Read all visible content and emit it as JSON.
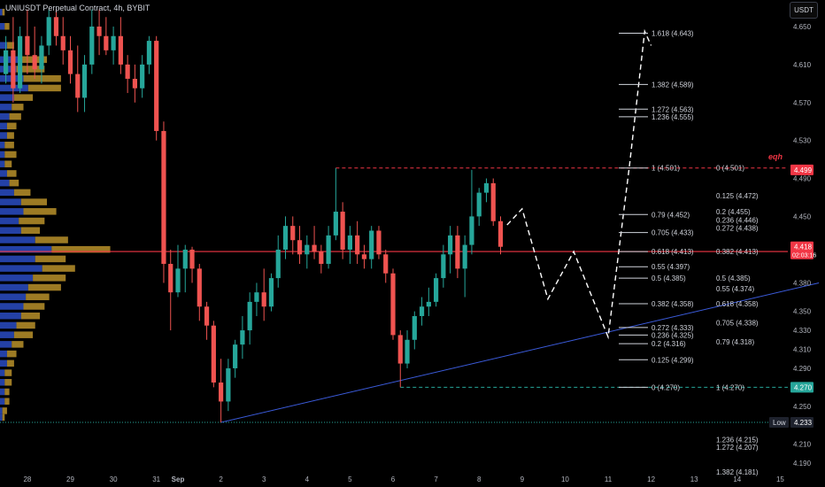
{
  "header": {
    "symbol_title": "UNIUSDT Perpetual Contract, 4h, BYBIT",
    "currency_button": "USDT"
  },
  "colors": {
    "background": "#000000",
    "bull": "#26a69a",
    "bear": "#ef5350",
    "profile_blue": "#2848b8",
    "profile_gold": "#b8902a",
    "level_line": "#f23645",
    "trend_line": "#3b5bdb",
    "low_line": "#26a69a",
    "axis_text": "#b2b5be"
  },
  "chart_data": {
    "type": "candlestick",
    "title": "UNIUSDT Perpetual Contract, 4h, BYBIT",
    "ylim": [
      4.178,
      4.678
    ],
    "y_ticks": [
      "4.650",
      "4.610",
      "4.570",
      "4.530",
      "4.490",
      "4.450",
      "4.380",
      "4.350",
      "4.330",
      "4.310",
      "4.290",
      "4.250",
      "4.210",
      "4.190"
    ],
    "x_ticks": [
      "28",
      "29",
      "30",
      "31",
      "Sep",
      "2",
      "3",
      "4",
      "5",
      "6",
      "7",
      "8",
      "9",
      "10",
      "11",
      "12",
      "13",
      "14",
      "15"
    ],
    "x_ticks_bold": [
      "Sep"
    ],
    "price_labels": [
      {
        "text": "4.499",
        "value": 4.499,
        "color": "#f23645"
      },
      {
        "text": "4.418",
        "value": 4.418,
        "color": "#f23645",
        "subtext": "02:03:16"
      },
      {
        "text": "4.270",
        "value": 4.27,
        "color": "#26a69a"
      },
      {
        "text": "4.233",
        "value": 4.233,
        "color": "#1e222d",
        "tag": "Low"
      }
    ],
    "candles_date_axis_note": "x measured in days, 0 = Sep 1",
    "candles": [
      {
        "t": -4.0,
        "o": 4.6,
        "h": 4.64,
        "l": 4.59,
        "c": 4.625
      },
      {
        "t": -3.83,
        "o": 4.625,
        "h": 4.66,
        "l": 4.57,
        "c": 4.585
      },
      {
        "t": -3.67,
        "o": 4.585,
        "h": 4.65,
        "l": 4.58,
        "c": 4.64
      },
      {
        "t": -3.5,
        "o": 4.64,
        "h": 4.668,
        "l": 4.6,
        "c": 4.62
      },
      {
        "t": -3.33,
        "o": 4.62,
        "h": 4.65,
        "l": 4.595,
        "c": 4.605
      },
      {
        "t": -3.17,
        "o": 4.605,
        "h": 4.64,
        "l": 4.59,
        "c": 4.63
      },
      {
        "t": -3.0,
        "o": 4.63,
        "h": 4.668,
        "l": 4.62,
        "c": 4.66
      },
      {
        "t": -2.83,
        "o": 4.66,
        "h": 4.668,
        "l": 4.63,
        "c": 4.64
      },
      {
        "t": -2.67,
        "o": 4.64,
        "h": 4.66,
        "l": 4.61,
        "c": 4.625
      },
      {
        "t": -2.5,
        "o": 4.625,
        "h": 4.64,
        "l": 4.59,
        "c": 4.6
      },
      {
        "t": -2.33,
        "o": 4.6,
        "h": 4.63,
        "l": 4.56,
        "c": 4.575
      },
      {
        "t": -2.17,
        "o": 4.575,
        "h": 4.62,
        "l": 4.56,
        "c": 4.61
      },
      {
        "t": -2.0,
        "o": 4.61,
        "h": 4.668,
        "l": 4.6,
        "c": 4.65
      },
      {
        "t": -1.83,
        "o": 4.65,
        "h": 4.668,
        "l": 4.62,
        "c": 4.64
      },
      {
        "t": -1.67,
        "o": 4.64,
        "h": 4.66,
        "l": 4.62,
        "c": 4.625
      },
      {
        "t": -1.5,
        "o": 4.625,
        "h": 4.65,
        "l": 4.61,
        "c": 4.64
      },
      {
        "t": -1.33,
        "o": 4.64,
        "h": 4.66,
        "l": 4.6,
        "c": 4.61
      },
      {
        "t": -1.17,
        "o": 4.61,
        "h": 4.62,
        "l": 4.58,
        "c": 4.595
      },
      {
        "t": -1.0,
        "o": 4.595,
        "h": 4.61,
        "l": 4.57,
        "c": 4.585
      },
      {
        "t": -0.83,
        "o": 4.585,
        "h": 4.62,
        "l": 4.575,
        "c": 4.61
      },
      {
        "t": -0.67,
        "o": 4.61,
        "h": 4.64,
        "l": 4.6,
        "c": 4.635
      },
      {
        "t": -0.5,
        "o": 4.635,
        "h": 4.64,
        "l": 4.53,
        "c": 4.54
      },
      {
        "t": -0.33,
        "o": 4.54,
        "h": 4.55,
        "l": 4.38,
        "c": 4.4
      },
      {
        "t": -0.17,
        "o": 4.4,
        "h": 4.415,
        "l": 4.33,
        "c": 4.37
      },
      {
        "t": 0.0,
        "o": 4.37,
        "h": 4.42,
        "l": 4.365,
        "c": 4.395
      },
      {
        "t": 0.17,
        "o": 4.395,
        "h": 4.42,
        "l": 4.37,
        "c": 4.415
      },
      {
        "t": 0.33,
        "o": 4.415,
        "h": 4.418,
        "l": 4.38,
        "c": 4.395
      },
      {
        "t": 0.5,
        "o": 4.395,
        "h": 4.4,
        "l": 4.34,
        "c": 4.355
      },
      {
        "t": 0.67,
        "o": 4.355,
        "h": 4.36,
        "l": 4.32,
        "c": 4.335
      },
      {
        "t": 0.83,
        "o": 4.335,
        "h": 4.34,
        "l": 4.27,
        "c": 4.275
      },
      {
        "t": 1.0,
        "o": 4.275,
        "h": 4.3,
        "l": 4.233,
        "c": 4.255
      },
      {
        "t": 1.17,
        "o": 4.255,
        "h": 4.3,
        "l": 4.245,
        "c": 4.29
      },
      {
        "t": 1.33,
        "o": 4.29,
        "h": 4.32,
        "l": 4.28,
        "c": 4.315
      },
      {
        "t": 1.5,
        "o": 4.315,
        "h": 4.345,
        "l": 4.3,
        "c": 4.33
      },
      {
        "t": 1.67,
        "o": 4.33,
        "h": 4.37,
        "l": 4.315,
        "c": 4.36
      },
      {
        "t": 1.83,
        "o": 4.36,
        "h": 4.38,
        "l": 4.345,
        "c": 4.37
      },
      {
        "t": 2.0,
        "o": 4.37,
        "h": 4.395,
        "l": 4.34,
        "c": 4.355
      },
      {
        "t": 2.17,
        "o": 4.355,
        "h": 4.39,
        "l": 4.35,
        "c": 4.385
      },
      {
        "t": 2.33,
        "o": 4.385,
        "h": 4.43,
        "l": 4.375,
        "c": 4.415
      },
      {
        "t": 2.5,
        "o": 4.415,
        "h": 4.45,
        "l": 4.405,
        "c": 4.44
      },
      {
        "t": 2.67,
        "o": 4.44,
        "h": 4.45,
        "l": 4.41,
        "c": 4.425
      },
      {
        "t": 2.83,
        "o": 4.425,
        "h": 4.44,
        "l": 4.4,
        "c": 4.41
      },
      {
        "t": 3.0,
        "o": 4.41,
        "h": 4.43,
        "l": 4.395,
        "c": 4.42
      },
      {
        "t": 3.17,
        "o": 4.42,
        "h": 4.44,
        "l": 4.405,
        "c": 4.413
      },
      {
        "t": 3.33,
        "o": 4.413,
        "h": 4.42,
        "l": 4.39,
        "c": 4.4
      },
      {
        "t": 3.5,
        "o": 4.4,
        "h": 4.44,
        "l": 4.395,
        "c": 4.43
      },
      {
        "t": 3.67,
        "o": 4.43,
        "h": 4.501,
        "l": 4.425,
        "c": 4.455
      },
      {
        "t": 3.83,
        "o": 4.455,
        "h": 4.465,
        "l": 4.405,
        "c": 4.415
      },
      {
        "t": 4.0,
        "o": 4.415,
        "h": 4.44,
        "l": 4.4,
        "c": 4.43
      },
      {
        "t": 4.17,
        "o": 4.43,
        "h": 4.445,
        "l": 4.4,
        "c": 4.41
      },
      {
        "t": 4.33,
        "o": 4.41,
        "h": 4.42,
        "l": 4.395,
        "c": 4.405
      },
      {
        "t": 4.5,
        "o": 4.405,
        "h": 4.44,
        "l": 4.395,
        "c": 4.435
      },
      {
        "t": 4.67,
        "o": 4.435,
        "h": 4.44,
        "l": 4.405,
        "c": 4.41
      },
      {
        "t": 4.83,
        "o": 4.41,
        "h": 4.415,
        "l": 4.38,
        "c": 4.39
      },
      {
        "t": 5.0,
        "o": 4.39,
        "h": 4.395,
        "l": 4.32,
        "c": 4.325
      },
      {
        "t": 5.17,
        "o": 4.325,
        "h": 4.33,
        "l": 4.27,
        "c": 4.295
      },
      {
        "t": 5.33,
        "o": 4.295,
        "h": 4.33,
        "l": 4.29,
        "c": 4.32
      },
      {
        "t": 5.5,
        "o": 4.32,
        "h": 4.35,
        "l": 4.31,
        "c": 4.345
      },
      {
        "t": 5.67,
        "o": 4.345,
        "h": 4.365,
        "l": 4.335,
        "c": 4.355
      },
      {
        "t": 5.83,
        "o": 4.355,
        "h": 4.375,
        "l": 4.345,
        "c": 4.36
      },
      {
        "t": 6.0,
        "o": 4.36,
        "h": 4.39,
        "l": 4.355,
        "c": 4.385
      },
      {
        "t": 6.17,
        "o": 4.385,
        "h": 4.42,
        "l": 4.375,
        "c": 4.41
      },
      {
        "t": 6.33,
        "o": 4.41,
        "h": 4.44,
        "l": 4.39,
        "c": 4.43
      },
      {
        "t": 6.5,
        "o": 4.43,
        "h": 4.44,
        "l": 4.385,
        "c": 4.395
      },
      {
        "t": 6.67,
        "o": 4.395,
        "h": 4.43,
        "l": 4.365,
        "c": 4.42
      },
      {
        "t": 6.83,
        "o": 4.42,
        "h": 4.499,
        "l": 4.41,
        "c": 4.45
      },
      {
        "t": 7.0,
        "o": 4.45,
        "h": 4.48,
        "l": 4.44,
        "c": 4.475
      },
      {
        "t": 7.17,
        "o": 4.475,
        "h": 4.49,
        "l": 4.465,
        "c": 4.485
      },
      {
        "t": 7.33,
        "o": 4.485,
        "h": 4.49,
        "l": 4.44,
        "c": 4.445
      },
      {
        "t": 7.5,
        "o": 4.445,
        "h": 4.45,
        "l": 4.41,
        "c": 4.418
      }
    ],
    "volume_profile": [
      {
        "price": 4.665,
        "blue": 0.01,
        "gold": 0.01
      },
      {
        "price": 4.65,
        "blue": 0.02,
        "gold": 0.02
      },
      {
        "price": 4.63,
        "blue": 0.03,
        "gold": 0.03
      },
      {
        "price": 4.615,
        "blue": 0.09,
        "gold": 0.11
      },
      {
        "price": 4.605,
        "blue": 0.07,
        "gold": 0.12
      },
      {
        "price": 4.595,
        "blue": 0.1,
        "gold": 0.16
      },
      {
        "price": 4.585,
        "blue": 0.12,
        "gold": 0.14
      },
      {
        "price": 4.575,
        "blue": 0.06,
        "gold": 0.08
      },
      {
        "price": 4.565,
        "blue": 0.05,
        "gold": 0.05
      },
      {
        "price": 4.555,
        "blue": 0.04,
        "gold": 0.05
      },
      {
        "price": 4.545,
        "blue": 0.03,
        "gold": 0.04
      },
      {
        "price": 4.535,
        "blue": 0.03,
        "gold": 0.03
      },
      {
        "price": 4.525,
        "blue": 0.02,
        "gold": 0.04
      },
      {
        "price": 4.515,
        "blue": 0.02,
        "gold": 0.05
      },
      {
        "price": 4.505,
        "blue": 0.02,
        "gold": 0.03
      },
      {
        "price": 4.495,
        "blue": 0.03,
        "gold": 0.04
      },
      {
        "price": 4.485,
        "blue": 0.04,
        "gold": 0.04
      },
      {
        "price": 4.475,
        "blue": 0.06,
        "gold": 0.07
      },
      {
        "price": 4.465,
        "blue": 0.09,
        "gold": 0.11
      },
      {
        "price": 4.455,
        "blue": 0.1,
        "gold": 0.14
      },
      {
        "price": 4.445,
        "blue": 0.08,
        "gold": 0.11
      },
      {
        "price": 4.435,
        "blue": 0.09,
        "gold": 0.08
      },
      {
        "price": 4.425,
        "blue": 0.15,
        "gold": 0.14
      },
      {
        "price": 4.415,
        "blue": 0.22,
        "gold": 0.25
      },
      {
        "price": 4.405,
        "blue": 0.15,
        "gold": 0.13
      },
      {
        "price": 4.395,
        "blue": 0.18,
        "gold": 0.14
      },
      {
        "price": 4.385,
        "blue": 0.14,
        "gold": 0.14
      },
      {
        "price": 4.375,
        "blue": 0.12,
        "gold": 0.14
      },
      {
        "price": 4.365,
        "blue": 0.11,
        "gold": 0.1
      },
      {
        "price": 4.355,
        "blue": 0.1,
        "gold": 0.09
      },
      {
        "price": 4.345,
        "blue": 0.09,
        "gold": 0.08
      },
      {
        "price": 4.335,
        "blue": 0.07,
        "gold": 0.08
      },
      {
        "price": 4.325,
        "blue": 0.06,
        "gold": 0.08
      },
      {
        "price": 4.315,
        "blue": 0.05,
        "gold": 0.05
      },
      {
        "price": 4.305,
        "blue": 0.03,
        "gold": 0.04
      },
      {
        "price": 4.295,
        "blue": 0.03,
        "gold": 0.03
      },
      {
        "price": 4.285,
        "blue": 0.02,
        "gold": 0.03
      },
      {
        "price": 4.275,
        "blue": 0.02,
        "gold": 0.03
      },
      {
        "price": 4.265,
        "blue": 0.02,
        "gold": 0.02
      },
      {
        "price": 4.255,
        "blue": 0.02,
        "gold": 0.02
      },
      {
        "price": 4.245,
        "blue": 0.01,
        "gold": 0.02
      },
      {
        "price": 4.238,
        "blue": 0.01,
        "gold": 0.01
      }
    ],
    "fib_left_levels": [
      {
        "label": "1.618 (4.643)",
        "price": 4.643
      },
      {
        "label": "1.382 (4.589)",
        "price": 4.589
      },
      {
        "label": "1.272 (4.563)",
        "price": 4.563
      },
      {
        "label": "1.236 (4.555)",
        "price": 4.555
      },
      {
        "label": "1 (4.501)",
        "price": 4.501
      },
      {
        "label": "0.79 (4.452)",
        "price": 4.452
      },
      {
        "label": "0.705 (4.433)",
        "price": 4.433
      },
      {
        "label": "0.618 (4.413)",
        "price": 4.413
      },
      {
        "label": "0.55 (4.397)",
        "price": 4.397
      },
      {
        "label": "0.5 (4.385)",
        "price": 4.385
      },
      {
        "label": "0.382 (4.358)",
        "price": 4.358
      },
      {
        "label": "0.272 (4.333)",
        "price": 4.333
      },
      {
        "label": "0.236 (4.325)",
        "price": 4.325
      },
      {
        "label": "0.2 (4.316)",
        "price": 4.316
      },
      {
        "label": "0.125 (4.299)",
        "price": 4.299
      },
      {
        "label": "0 (4.270)",
        "price": 4.27
      }
    ],
    "fib_right_levels": [
      {
        "label": "0 (4.501)",
        "price": 4.501
      },
      {
        "label": "0.125 (4.472)",
        "price": 4.472
      },
      {
        "label": "0.2 (4.455)",
        "price": 4.455
      },
      {
        "label": "0.236 (4.446)",
        "price": 4.446
      },
      {
        "label": "0.272 (4.438)",
        "price": 4.438
      },
      {
        "label": "0.382 (4.413)",
        "price": 4.413
      },
      {
        "label": "0.5 (4.385)",
        "price": 4.385
      },
      {
        "label": "0.55 (4.374)",
        "price": 4.374
      },
      {
        "label": "0.618 (4.358)",
        "price": 4.358
      },
      {
        "label": "0.705 (4.338)",
        "price": 4.338
      },
      {
        "label": "0.79 (4.318)",
        "price": 4.318
      },
      {
        "label": "1 (4.270)",
        "price": 4.27
      },
      {
        "label": "1.236 (4.215)",
        "price": 4.215
      },
      {
        "label": "1.272 (4.207)",
        "price": 4.207
      },
      {
        "label": "1.382 (4.181)",
        "price": 4.181
      }
    ],
    "annotations": [
      {
        "text": "eqh",
        "price": 4.508
      }
    ],
    "projection_path": [
      {
        "t": 7.65,
        "p": 4.441
      },
      {
        "t": 8.0,
        "p": 4.458
      },
      {
        "t": 8.6,
        "p": 4.363
      },
      {
        "t": 9.2,
        "p": 4.413
      },
      {
        "t": 10.0,
        "p": 4.323
      },
      {
        "t": 10.5,
        "p": 4.505
      },
      {
        "t": 10.85,
        "p": 4.645
      },
      {
        "t": 11.0,
        "p": 4.63
      }
    ],
    "horizontal_lines": [
      {
        "price": 4.413,
        "style": "solid",
        "color": "#f23645"
      },
      {
        "price": 4.501,
        "style": "dashed",
        "color": "#f23645",
        "from_t": 3.67
      },
      {
        "price": 4.27,
        "style": "dashed",
        "color": "#26a69a",
        "from_t": 5.17
      },
      {
        "price": 4.233,
        "style": "dotted",
        "color": "#26a69a",
        "from_t": -5.0
      }
    ],
    "trend_line": [
      {
        "t": 1.0,
        "p": 4.233
      },
      {
        "t": 14.9,
        "p": 4.38
      }
    ]
  }
}
